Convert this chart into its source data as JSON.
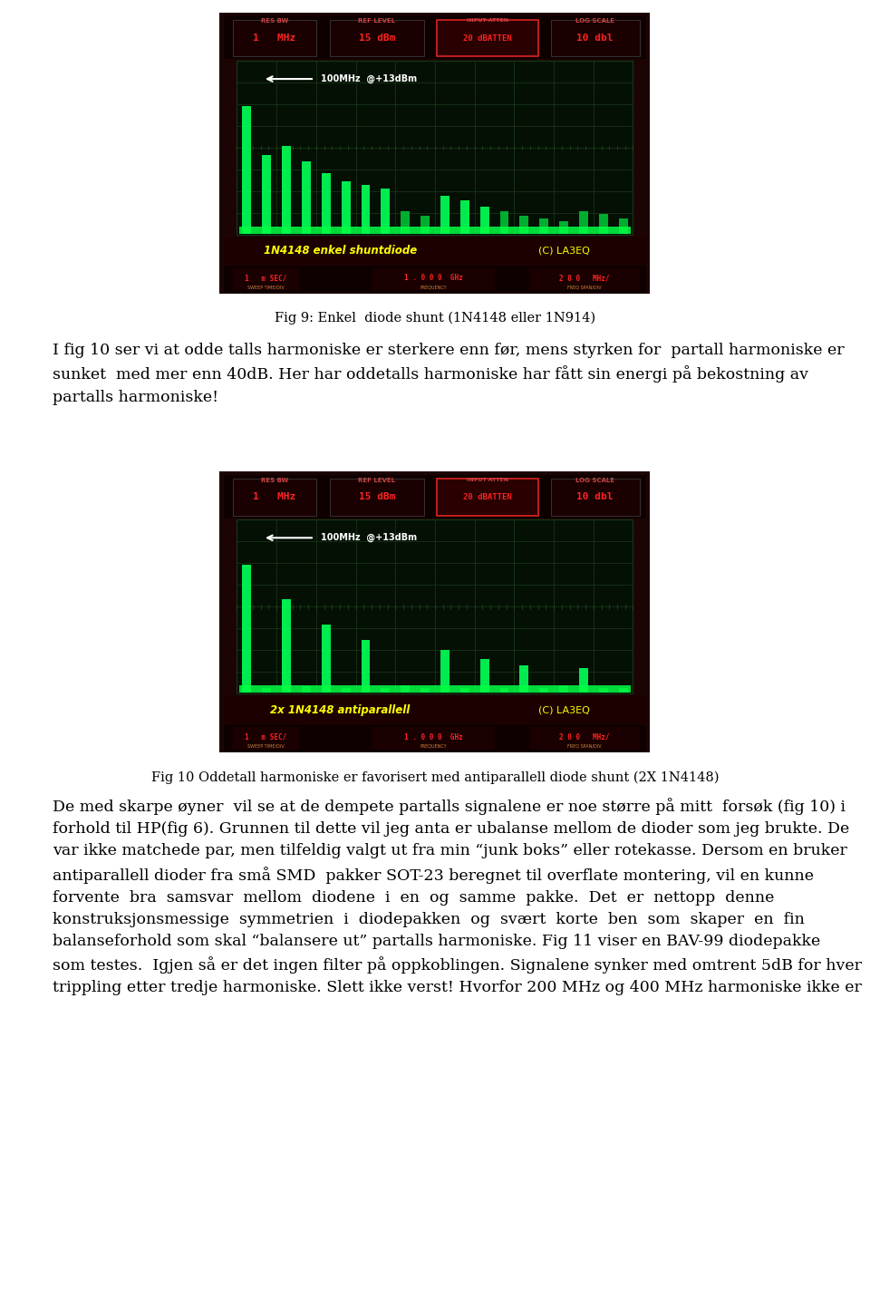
{
  "page_bg": "#ffffff",
  "fig_width": 9.6,
  "fig_height": 14.22,
  "fig9_caption": "Fig 9: Enkel  diode shunt (1N4148 eller 1N914)",
  "fig10_caption": "Fig 10 Oddetall harmoniske er favorisert med antiparallell diode shunt (2X 1N4148)",
  "paragraph1": "I fig 10 ser vi at odde talls harmoniske er sterkere enn før, mens styrken for  partall harmoniske er\nsunket  med mer enn 40dB. Her har oddetalls harmoniske har fått sin energi på bekostning av\npartalls harmoniske!",
  "paragraph2": "De med skarpe øyner  vil se at de dempete partalls signalene er noe større på mitt  forsøk (fig 10) i\nforhold til HP(fig 6). Grunnen til dette vil jeg anta er ubalanse mellom de dioder som jeg brukte. De\nvar ikke matchede par, men tilfeldig valgt ut fra min “junk boks” eller rotekasse. Dersom en bruker\nantiparallell dioder fra små SMD  pakker SOT-23 beregnet til overflate montering, vil en kunne\nforvente  bra  samsvar  mellom  diodene  i  en  og  samme  pakke.  Det  er  nettopp  denne\nkonstruksjonsmessige  symmetrien  i  diodepakken  og  svært  korte  ben  som  skaper  en  fin\nbalanseforhold som skal “balansere ut” partalls harmoniske. Fig 11 viser en BAV-99 diodepakke\nsom testes.  Igjen så er det ingen filter på oppkoblingen. Signalene synker med omtrent 5dB for hver\ntrippling etter tredje harmoniske. Slett ikke verst! Hvorfor 200 MHz og 400 MHz harmoniske ikke er",
  "fig9_label": "1N4148 enkel shuntdiode",
  "fig9_label_color": "#ffff00",
  "fig9_copyright": "(C) LA3EQ",
  "fig9_copyright_color": "#ffff00",
  "fig10_label": "2x 1N4148 antiparallell",
  "fig10_label_color": "#ffff00",
  "fig10_copyright": "(C) LA3EQ",
  "fig10_copyright_color": "#ffff00",
  "fig9_bars": [
    8.5,
    5.2,
    5.8,
    4.8,
    4.0,
    3.5,
    3.2,
    3.0,
    1.5,
    1.2,
    2.5,
    2.2,
    1.8,
    1.5,
    1.2,
    1.0,
    0.8,
    1.5,
    1.3,
    1.0
  ],
  "fig10_bars_odd": [
    8.5,
    0.3,
    6.2,
    0.4,
    4.5,
    0.3,
    3.5,
    0.3,
    0.5,
    0.3,
    2.8,
    0.3,
    2.2,
    0.3,
    1.8,
    0.3,
    0.5,
    1.6,
    0.3,
    0.3
  ],
  "text_fontsize": 12.5,
  "caption_fontsize": 10.5,
  "font_family": "DejaVu Serif"
}
